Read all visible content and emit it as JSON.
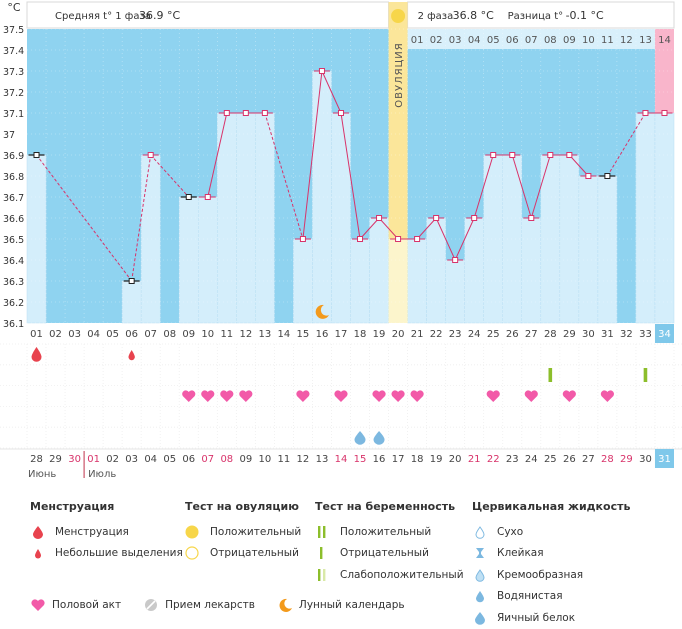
{
  "header": {
    "phase1_label": "Средняя t° 1 фаза",
    "phase1_value": "36.9 °C",
    "phase2_label": "2 фаза",
    "phase2_value": "36.8 °C",
    "diff_label": "Разница t°",
    "diff_value": "-0.1 °C",
    "unit": "°C"
  },
  "chart_data": {
    "type": "line",
    "ylabel": "°C",
    "ylim": [
      36.1,
      37.5
    ],
    "y_ticks": [
      "36.1",
      "36.2",
      "36.3",
      "36.4",
      "36.5",
      "36.6",
      "36.7",
      "36.8",
      "36.9",
      "37",
      "37.1",
      "37.2",
      "37.3",
      "37.4",
      "37.5"
    ],
    "days": [
      "01",
      "02",
      "03",
      "04",
      "05",
      "06",
      "07",
      "08",
      "09",
      "10",
      "11",
      "12",
      "13",
      "14",
      "15",
      "16",
      "17",
      "18",
      "19",
      "20",
      "21",
      "22",
      "23",
      "24",
      "25",
      "26",
      "27",
      "28",
      "29",
      "30",
      "31",
      "32",
      "33",
      "34"
    ],
    "temperatures": [
      36.9,
      null,
      null,
      null,
      null,
      36.3,
      36.9,
      null,
      36.7,
      36.7,
      37.1,
      37.1,
      37.1,
      null,
      36.5,
      37.3,
      37.1,
      36.5,
      36.6,
      36.5,
      36.5,
      36.6,
      36.4,
      36.6,
      36.9,
      36.9,
      36.6,
      36.9,
      36.9,
      36.8,
      36.8,
      null,
      37.1,
      37.1
    ],
    "excluded_days": [
      "01",
      "06",
      "09",
      "31"
    ],
    "ovulation_day": "20",
    "ovulation_label": "ОВУЛЯЦИЯ",
    "phase2_days": [
      "01",
      "02",
      "03",
      "04",
      "05",
      "06",
      "07",
      "08",
      "09",
      "10",
      "11",
      "12",
      "13",
      "14"
    ],
    "current_day": "34",
    "current_phase2_day": "14"
  },
  "symbols": {
    "menstruation_days": [
      "01"
    ],
    "spotting_days": [
      "06"
    ],
    "pregnancy_test_days": [
      "28",
      "33"
    ],
    "intercourse_days": [
      "09",
      "10",
      "11",
      "12",
      "15",
      "17",
      "19",
      "20",
      "21",
      "25",
      "27",
      "29",
      "31"
    ],
    "cervical_fluid_egg_white_days": [
      "18",
      "19"
    ],
    "moon_day": "16"
  },
  "calendar": {
    "dates": [
      {
        "d": "28",
        "red": false
      },
      {
        "d": "29",
        "red": false
      },
      {
        "d": "30",
        "red": true
      },
      {
        "d": "01",
        "red": true
      },
      {
        "d": "02",
        "red": false
      },
      {
        "d": "03",
        "red": false
      },
      {
        "d": "04",
        "red": false
      },
      {
        "d": "05",
        "red": false
      },
      {
        "d": "06",
        "red": false
      },
      {
        "d": "07",
        "red": true
      },
      {
        "d": "08",
        "red": true
      },
      {
        "d": "09",
        "red": false
      },
      {
        "d": "10",
        "red": false
      },
      {
        "d": "11",
        "red": false
      },
      {
        "d": "12",
        "red": false
      },
      {
        "d": "13",
        "red": false
      },
      {
        "d": "14",
        "red": true
      },
      {
        "d": "15",
        "red": true
      },
      {
        "d": "16",
        "red": false
      },
      {
        "d": "17",
        "red": false
      },
      {
        "d": "18",
        "red": false
      },
      {
        "d": "19",
        "red": false
      },
      {
        "d": "20",
        "red": false
      },
      {
        "d": "21",
        "red": true
      },
      {
        "d": "22",
        "red": true
      },
      {
        "d": "23",
        "red": false
      },
      {
        "d": "24",
        "red": false
      },
      {
        "d": "25",
        "red": false
      },
      {
        "d": "26",
        "red": false
      },
      {
        "d": "27",
        "red": false
      },
      {
        "d": "28",
        "red": true
      },
      {
        "d": "29",
        "red": true
      },
      {
        "d": "30",
        "red": false
      },
      {
        "d": "31",
        "red": false
      }
    ],
    "month1": "Июнь",
    "month2": "Июль"
  },
  "legend": {
    "menstruation": {
      "title": "Менструация",
      "items": [
        "Менструация",
        "Небольшие выделения"
      ]
    },
    "ovulation_test": {
      "title": "Тест на овуляцию",
      "items": [
        "Положительный",
        "Отрицательный"
      ]
    },
    "pregnancy_test": {
      "title": "Тест на беременность",
      "items": [
        "Положительный",
        "Отрицательный",
        "Слабоположительный"
      ]
    },
    "cervical_fluid": {
      "title": "Цервикальная жидкость",
      "items": [
        "Сухо",
        "Клейкая",
        "Кремообразная",
        "Водянистая",
        "Яичный белок"
      ]
    },
    "bottom": [
      "Половой акт",
      "Прием лекарств",
      "Лунный календарь"
    ]
  },
  "colors": {
    "plot_bg": "#8fd3f0",
    "column": "#d4eefb",
    "ovulation": "#fbe69a",
    "line": "#d8336a",
    "heart": "#f25aa8",
    "drop_red": "#e8434e",
    "sun": "#f7d64a",
    "moon": "#f39a1c",
    "green": "#8cbe2b",
    "highlight": "#7fc8ea",
    "pink": "#f9b5cb"
  }
}
